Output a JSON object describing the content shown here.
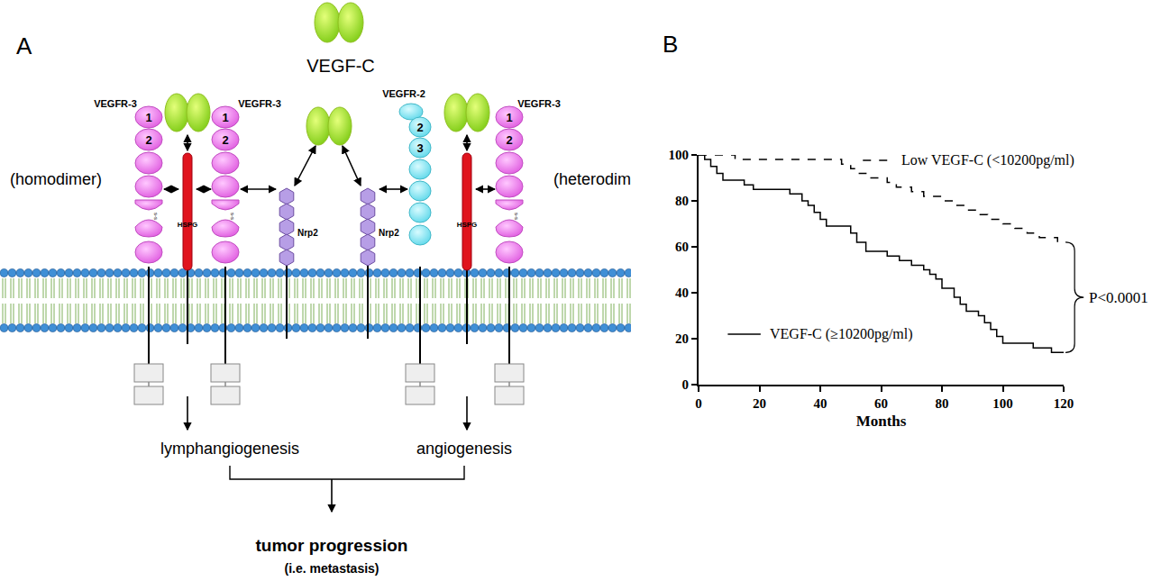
{
  "panel_labels": [
    "A",
    "B"
  ],
  "diagram": {
    "ligand_label": "VEGF-C",
    "complexes": [
      {
        "label": "(homodimer)",
        "receptors": [
          "VEGFR-3",
          "VEGFR-3"
        ],
        "coreceptor": "HSPG",
        "outcome": "lymphangiogenesis"
      },
      {
        "label": "(heterodimer)",
        "receptors": [
          "VEGFR-2",
          "VEGFR-3"
        ],
        "coreceptor": "HSPG",
        "outcome": "angiogenesis"
      }
    ],
    "nrp": [
      "Nrp2",
      "Nrp2"
    ],
    "domain_numbers": {
      "VEGFR-3": [
        "1",
        "2"
      ],
      "VEGFR-2": [
        "2",
        "3"
      ]
    },
    "disulfide": "s-s",
    "result": "tumor progression",
    "result_note": "(i.e. metastasis)"
  },
  "chart_data": {
    "type": "line",
    "xlabel": "Months",
    "xlim": [
      0,
      120
    ],
    "ylim": [
      0,
      100
    ],
    "xticks": [
      0,
      20,
      40,
      60,
      80,
      100,
      120
    ],
    "yticks": [
      0,
      20,
      40,
      60,
      80,
      100
    ],
    "grid": false,
    "annotations": [
      "P<0.0001"
    ],
    "series": [
      {
        "name": "Low VEGF-C (<10200pg/ml)",
        "color": "#000000",
        "line_style": "dashed",
        "x": [
          0,
          12,
          47,
          50,
          52,
          55,
          62,
          65,
          70,
          74,
          80,
          84,
          88,
          92,
          95,
          100,
          104,
          108,
          112,
          118,
          120
        ],
        "values": [
          100,
          98,
          96,
          94,
          92,
          90,
          88,
          86,
          84,
          82,
          80,
          78,
          76,
          74,
          72,
          70,
          68,
          66,
          64,
          62,
          62
        ]
      },
      {
        "name": "VEGF-C (≥10200pg/ml)",
        "color": "#000000",
        "line_style": "solid",
        "x": [
          0,
          2,
          4,
          6,
          8,
          15,
          18,
          30,
          34,
          36,
          38,
          40,
          42,
          50,
          52,
          55,
          62,
          66,
          70,
          74,
          76,
          78,
          80,
          84,
          86,
          88,
          92,
          94,
          96,
          98,
          100,
          110,
          116,
          120
        ],
        "values": [
          100,
          98,
          95,
          92,
          89,
          87,
          85,
          83,
          80,
          78,
          75,
          72,
          69,
          66,
          62,
          58,
          56,
          54,
          52,
          50,
          48,
          46,
          42,
          38,
          35,
          32,
          30,
          27,
          24,
          21,
          18,
          16,
          14,
          14
        ]
      }
    ]
  }
}
